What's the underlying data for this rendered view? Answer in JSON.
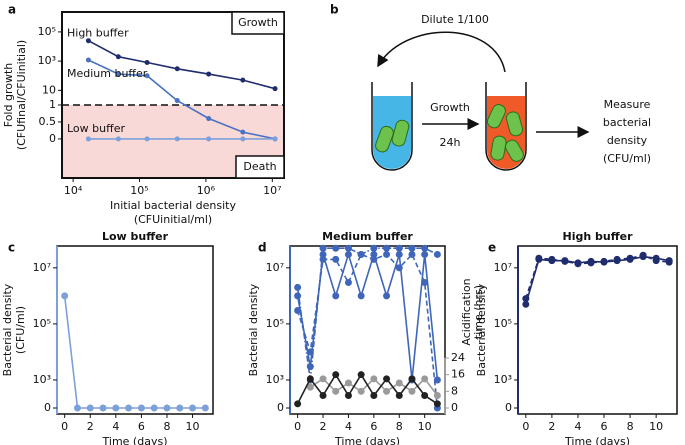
{
  "chart_data": [
    {
      "type": "line",
      "panel": "a",
      "x_label": [
        "Initial bacterial density",
        "(CFUinitial/ml)"
      ],
      "y_label": [
        "Fold growth",
        "(CFUfinal/CFUinitial)"
      ],
      "xscale": "log",
      "yscale": "log-above-1",
      "xlim": [
        6800,
        15000000
      ],
      "ylim": [
        -1.15,
        2300000
      ],
      "xticks": [
        {
          "value": 10000,
          "label": "10⁴"
        },
        {
          "value": 100000,
          "label": "10⁵"
        },
        {
          "value": 1000000,
          "label": "10⁶"
        },
        {
          "value": 10000000,
          "label": "10⁷"
        }
      ],
      "yticks": [
        {
          "value": 100000,
          "label": "10⁵"
        },
        {
          "value": 1000,
          "label": "10³"
        },
        10,
        1,
        0.5,
        0
      ],
      "reference_line": 1,
      "shade_below_reference": "#f9d9d7",
      "region_labels": {
        "above": "Growth",
        "below": "Death"
      },
      "x": [
        17000,
        48000,
        130000,
        370000,
        1100000,
        3600000,
        11000000
      ],
      "series": [
        {
          "name": "High buffer",
          "color": "#1f2d6e",
          "values": [
            25000,
            2000,
            800,
            300,
            130,
            50,
            13
          ]
        },
        {
          "name": "Medium buffer",
          "color": "#4a72c0",
          "values": [
            1200,
            130,
            100,
            2,
            0.6,
            0.2,
            0
          ]
        },
        {
          "name": "Low buffer",
          "color": "#7da0db",
          "values": [
            0,
            0,
            0,
            0,
            0,
            0,
            0
          ]
        }
      ]
    },
    {
      "type": "line",
      "panel": "c",
      "title": "Low buffer",
      "title_color": "#7da0db",
      "x_label": [
        "Time (days)"
      ],
      "y_label": [
        "Bacterial density",
        "(CFU/ml)"
      ],
      "yscale": "log-zero",
      "xlim": [
        -0.6,
        11.6
      ],
      "ylim": [
        0,
        60000000
      ],
      "xticks": [
        0,
        2,
        4,
        6,
        8,
        10
      ],
      "yticks": [
        {
          "value": 10000000,
          "label": "10⁷"
        },
        {
          "value": 100000,
          "label": "10⁵"
        },
        {
          "value": 1000,
          "label": "10³"
        },
        0
      ],
      "x": [
        0,
        1,
        2,
        3,
        4,
        5,
        6,
        7,
        8,
        9,
        10,
        11
      ],
      "series": [
        {
          "color": "#7da0db",
          "dash": "solid",
          "values": [
            1000000,
            0,
            0,
            0,
            0,
            0,
            0,
            0,
            0,
            0,
            0,
            0
          ]
        }
      ]
    },
    {
      "type": "line",
      "panel": "d",
      "title": "Medium buffer",
      "title_color": "#3f66b8",
      "x_label": [
        "Time (days)"
      ],
      "y_label": [
        "Bacterial density"
      ],
      "y2_label": [
        "Acidification",
        "time (hrs)"
      ],
      "yscale": "log-zero",
      "xlim": [
        -0.6,
        11.6
      ],
      "ylim": [
        0,
        60000000
      ],
      "y2lim": [
        0,
        24
      ],
      "xticks": [
        0,
        2,
        4,
        6,
        8,
        10
      ],
      "yticks": [
        {
          "value": 10000000,
          "label": "10⁷"
        },
        {
          "value": 100000,
          "label": "10⁵"
        },
        {
          "value": 1000,
          "label": "10³"
        },
        0
      ],
      "y2ticks": [
        0,
        8,
        16,
        24
      ],
      "x": [
        0,
        1,
        2,
        3,
        4,
        5,
        6,
        7,
        8,
        9,
        10,
        11
      ],
      "series": [
        {
          "color": "#3f66b8",
          "dash": "solid",
          "values": [
            1000000,
            3000,
            30000000,
            1000000,
            30000000,
            1000000,
            30000000,
            1000000,
            30000000,
            1000,
            30000000,
            1000
          ]
        },
        {
          "color": "#3f66b8",
          "dash": "dashed",
          "values": [
            300000,
            10000,
            20000000,
            20000000,
            3000000,
            30000000,
            20000000,
            30000000,
            10000000,
            30000000,
            3000000,
            0
          ]
        },
        {
          "color": "#3f66b8",
          "dash": "dashdot",
          "values": [
            2000000,
            1000,
            50000000,
            50000000,
            50000000,
            30000000,
            50000000,
            50000000,
            50000000,
            50000000,
            50000000,
            30000000
          ]
        },
        {
          "color": "#9a9a9a",
          "dash": "solid",
          "axis": "y2",
          "values": [
            null,
            10,
            14,
            8,
            12,
            8,
            14,
            8,
            12,
            8,
            14,
            6
          ]
        },
        {
          "color": "#222222",
          "dash": "solid",
          "axis": "y2",
          "values": [
            2,
            14,
            6,
            16,
            6,
            16,
            6,
            14,
            6,
            14,
            6,
            2
          ]
        }
      ]
    },
    {
      "type": "line",
      "panel": "e",
      "title": "High buffer",
      "title_color": "#1f2d6e",
      "x_label": [
        "Time (days)"
      ],
      "y_label": [
        "Bacterial density"
      ],
      "yscale": "log-zero",
      "xlim": [
        -0.6,
        11.6
      ],
      "ylim": [
        0,
        60000000
      ],
      "xticks": [
        0,
        2,
        4,
        6,
        8,
        10
      ],
      "yticks": [
        {
          "value": 10000000,
          "label": "10⁷"
        },
        {
          "value": 100000,
          "label": "10⁵"
        },
        {
          "value": 1000,
          "label": "10³"
        },
        0
      ],
      "x": [
        0,
        1,
        2,
        3,
        4,
        5,
        6,
        7,
        8,
        9,
        10,
        11
      ],
      "series": [
        {
          "color": "#1f2d6e",
          "dash": "solid",
          "values": [
            500000,
            20000000,
            18000000,
            18000000,
            15000000,
            17000000,
            16000000,
            18000000,
            20000000,
            25000000,
            22000000,
            18000000
          ]
        },
        {
          "color": "#1f2d6e",
          "dash": "dashed",
          "values": [
            800000,
            22000000,
            20000000,
            17000000,
            14000000,
            15000000,
            17000000,
            20000000,
            22000000,
            28000000,
            18000000,
            16000000
          ]
        }
      ]
    }
  ],
  "diagram": {
    "panel": "b",
    "dilute": "Dilute 1/100",
    "growth": "Growth",
    "time": "24h",
    "measure": [
      "Measure",
      "bacterial",
      "density",
      "(CFU/ml)"
    ]
  }
}
